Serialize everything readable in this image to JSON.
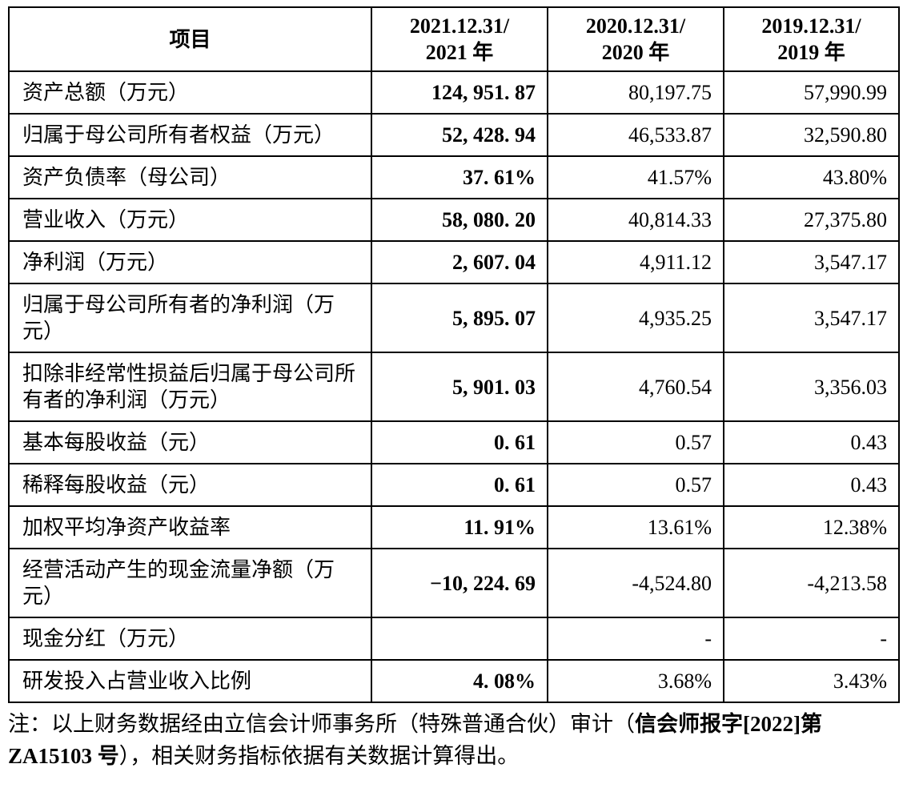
{
  "colors": {
    "background": "#ffffff",
    "border": "#000000",
    "text": "#000000"
  },
  "table": {
    "columns": [
      {
        "id": "item",
        "lines": [
          "项目"
        ]
      },
      {
        "id": "fy2021",
        "lines": [
          "2021.12.31/",
          "2021 年"
        ]
      },
      {
        "id": "fy2020",
        "lines": [
          "2020.12.31/",
          "2020 年"
        ]
      },
      {
        "id": "fy2019",
        "lines": [
          "2019.12.31/",
          "2019 年"
        ]
      }
    ],
    "rows": [
      {
        "label": "资产总额（万元）",
        "values": [
          "124, 951. 87",
          "80,197.75",
          "57,990.99"
        ]
      },
      {
        "label": "归属于母公司所有者权益（万元）",
        "values": [
          "52, 428. 94",
          "46,533.87",
          "32,590.80"
        ]
      },
      {
        "label": "资产负债率（母公司）",
        "values": [
          "37. 61%",
          "41.57%",
          "43.80%"
        ]
      },
      {
        "label": "营业收入（万元）",
        "values": [
          "58, 080. 20",
          "40,814.33",
          "27,375.80"
        ]
      },
      {
        "label": "净利润（万元）",
        "values": [
          "2, 607. 04",
          "4,911.12",
          "3,547.17"
        ]
      },
      {
        "label": "归属于母公司所有者的净利润（万元）",
        "values": [
          "5, 895. 07",
          "4,935.25",
          "3,547.17"
        ]
      },
      {
        "label": "扣除非经常性损益后归属于母公司所有者的净利润（万元）",
        "values": [
          "5, 901. 03",
          "4,760.54",
          "3,356.03"
        ]
      },
      {
        "label": "基本每股收益（元）",
        "values": [
          "0. 61",
          "0.57",
          "0.43"
        ]
      },
      {
        "label": "稀释每股收益（元）",
        "values": [
          "0. 61",
          "0.57",
          "0.43"
        ]
      },
      {
        "label": "加权平均净资产收益率",
        "values": [
          "11. 91%",
          "13.61%",
          "12.38%"
        ]
      },
      {
        "label": "经营活动产生的现金流量净额（万元）",
        "values": [
          "−10, 224. 69",
          "-4,524.80",
          "-4,213.58"
        ]
      },
      {
        "label": "现金分红（万元）",
        "values": [
          "",
          "-",
          "-"
        ]
      },
      {
        "label": "研发投入占营业收入比例",
        "values": [
          "4. 08%",
          "3.68%",
          "3.43%"
        ]
      }
    ]
  },
  "footnote": {
    "lines": [
      [
        {
          "text": "注：以上财务数据经由立信会计师事务所（特殊普通合伙）审计（",
          "bold": false
        },
        {
          "text": "信会师报字[2022]第",
          "bold": true
        }
      ],
      [
        {
          "text": "ZA15103 号",
          "bold": true
        },
        {
          "text": "），相关财务指标依据有关数据计算得出。",
          "bold": false
        }
      ]
    ]
  }
}
